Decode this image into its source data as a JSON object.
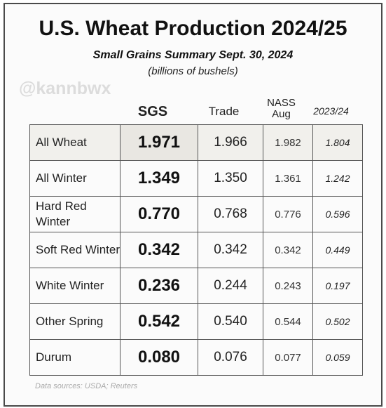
{
  "title": "U.S. Wheat Production 2024/25",
  "subtitle": "Small Grains Summary Sept. 30, 2024",
  "units": "(billions of bushels)",
  "watermark": "@kannbwx",
  "source": "Data sources: USDA; Reuters",
  "chart_data": {
    "type": "table",
    "columns": [
      "SGS",
      "Trade",
      "NASS Aug",
      "2023/24"
    ],
    "rows": [
      {
        "label": "All Wheat",
        "values": [
          "1.971",
          "1.966",
          "1.982",
          "1.804"
        ]
      },
      {
        "label": "All Winter",
        "values": [
          "1.349",
          "1.350",
          "1.361",
          "1.242"
        ]
      },
      {
        "label": "Hard Red Winter",
        "values": [
          "0.770",
          "0.768",
          "0.776",
          "0.596"
        ]
      },
      {
        "label": "Soft Red Winter",
        "values": [
          "0.342",
          "0.342",
          "0.342",
          "0.449"
        ]
      },
      {
        "label": "White Winter",
        "values": [
          "0.236",
          "0.244",
          "0.243",
          "0.197"
        ]
      },
      {
        "label": "Other Spring",
        "values": [
          "0.542",
          "0.540",
          "0.544",
          "0.502"
        ]
      },
      {
        "label": "Durum",
        "values": [
          "0.080",
          "0.076",
          "0.077",
          "0.059"
        ]
      }
    ]
  }
}
